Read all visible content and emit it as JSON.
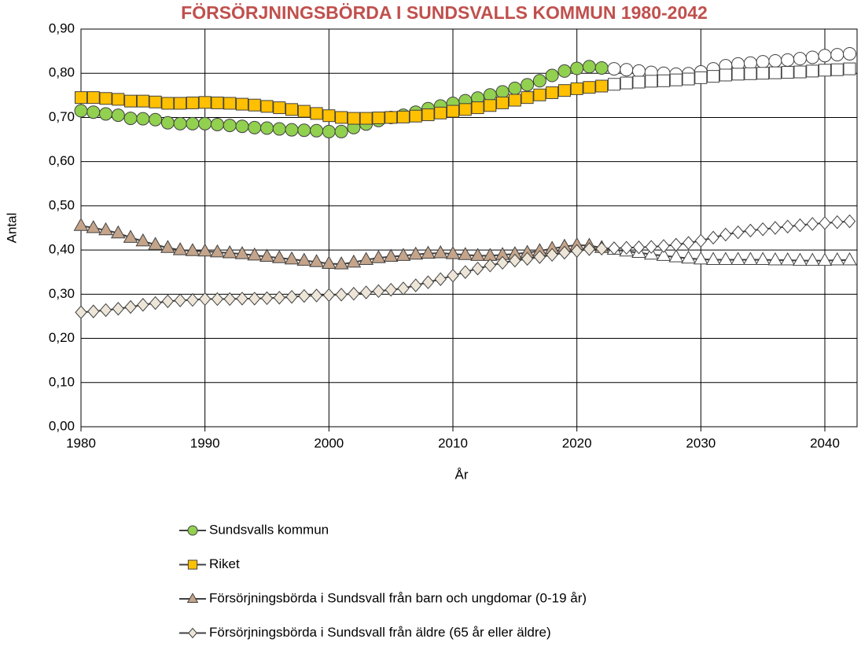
{
  "chart_data": {
    "type": "line",
    "title": "FÖRSÖRJNINGSBÖRDA I SUNDSVALLS KOMMUN 1980-2042",
    "xlabel": "År",
    "ylabel": "Antal",
    "x": [
      1980,
      1981,
      1982,
      1983,
      1984,
      1985,
      1986,
      1987,
      1988,
      1989,
      1990,
      1991,
      1992,
      1993,
      1994,
      1995,
      1996,
      1997,
      1998,
      1999,
      2000,
      2001,
      2002,
      2003,
      2004,
      2005,
      2006,
      2007,
      2008,
      2009,
      2010,
      2011,
      2012,
      2013,
      2014,
      2015,
      2016,
      2017,
      2018,
      2019,
      2020,
      2021,
      2022,
      2023,
      2024,
      2025,
      2026,
      2027,
      2028,
      2029,
      2030,
      2031,
      2032,
      2033,
      2034,
      2035,
      2036,
      2037,
      2038,
      2039,
      2040,
      2041,
      2042
    ],
    "forecast_from": 2023,
    "forecast_color": "#ffffff",
    "line_color": "#404040",
    "series": [
      {
        "name": "Sundsvalls kommun",
        "marker": "circle",
        "color": "#92d050",
        "values": [
          0.715,
          0.712,
          0.708,
          0.705,
          0.698,
          0.697,
          0.695,
          0.688,
          0.686,
          0.686,
          0.686,
          0.684,
          0.682,
          0.68,
          0.677,
          0.676,
          0.674,
          0.672,
          0.671,
          0.67,
          0.668,
          0.668,
          0.677,
          0.685,
          0.693,
          0.7,
          0.705,
          0.712,
          0.72,
          0.726,
          0.732,
          0.738,
          0.744,
          0.751,
          0.758,
          0.766,
          0.774,
          0.783,
          0.795,
          0.805,
          0.811,
          0.815,
          0.812,
          0.81,
          0.808,
          0.805,
          0.802,
          0.8,
          0.798,
          0.799,
          0.803,
          0.81,
          0.817,
          0.821,
          0.823,
          0.826,
          0.828,
          0.83,
          0.833,
          0.836,
          0.84,
          0.842,
          0.844
        ]
      },
      {
        "name": "Riket",
        "marker": "square",
        "color": "#ffc000",
        "values": [
          0.745,
          0.745,
          0.743,
          0.741,
          0.737,
          0.737,
          0.735,
          0.732,
          0.732,
          0.733,
          0.734,
          0.733,
          0.732,
          0.73,
          0.728,
          0.725,
          0.722,
          0.718,
          0.714,
          0.709,
          0.704,
          0.7,
          0.698,
          0.698,
          0.699,
          0.7,
          0.701,
          0.703,
          0.706,
          0.71,
          0.714,
          0.718,
          0.722,
          0.727,
          0.733,
          0.739,
          0.745,
          0.751,
          0.756,
          0.761,
          0.765,
          0.768,
          0.771,
          0.775,
          0.778,
          0.78,
          0.782,
          0.783,
          0.785,
          0.787,
          0.79,
          0.793,
          0.796,
          0.798,
          0.799,
          0.8,
          0.801,
          0.802,
          0.803,
          0.805,
          0.807,
          0.808,
          0.81
        ]
      },
      {
        "name": "Försörjningsbörda i Sundsvall från barn och ungdomar (0-19 år)",
        "marker": "triangle",
        "color": "#c4a48a",
        "values": [
          0.455,
          0.45,
          0.445,
          0.438,
          0.428,
          0.42,
          0.412,
          0.405,
          0.4,
          0.398,
          0.397,
          0.395,
          0.393,
          0.391,
          0.388,
          0.385,
          0.382,
          0.379,
          0.376,
          0.373,
          0.369,
          0.368,
          0.372,
          0.378,
          0.382,
          0.385,
          0.387,
          0.39,
          0.392,
          0.393,
          0.391,
          0.389,
          0.387,
          0.387,
          0.389,
          0.391,
          0.394,
          0.398,
          0.403,
          0.408,
          0.411,
          0.41,
          0.405,
          0.401,
          0.397,
          0.394,
          0.39,
          0.387,
          0.384,
          0.381,
          0.379,
          0.378,
          0.378,
          0.378,
          0.378,
          0.378,
          0.377,
          0.377,
          0.376,
          0.376,
          0.376,
          0.377,
          0.377
        ]
      },
      {
        "name": "Försörjningsbörda i Sundsvall från äldre (65 år eller äldre)",
        "marker": "diamond",
        "color": "#ede6d8",
        "values": [
          0.259,
          0.261,
          0.264,
          0.267,
          0.271,
          0.276,
          0.28,
          0.284,
          0.286,
          0.287,
          0.289,
          0.289,
          0.289,
          0.29,
          0.29,
          0.291,
          0.292,
          0.294,
          0.296,
          0.297,
          0.298,
          0.299,
          0.301,
          0.304,
          0.307,
          0.31,
          0.313,
          0.32,
          0.327,
          0.334,
          0.342,
          0.35,
          0.358,
          0.365,
          0.371,
          0.376,
          0.38,
          0.384,
          0.389,
          0.394,
          0.398,
          0.402,
          0.403,
          0.404,
          0.405,
          0.406,
          0.407,
          0.409,
          0.412,
          0.416,
          0.421,
          0.428,
          0.435,
          0.44,
          0.444,
          0.447,
          0.45,
          0.453,
          0.456,
          0.459,
          0.461,
          0.463,
          0.465
        ]
      }
    ],
    "xlim": [
      1980,
      2042.6
    ],
    "xticks": [
      1980,
      1990,
      2000,
      2010,
      2020,
      2030,
      2040
    ],
    "ylim": [
      0,
      0.9
    ],
    "yticks": [
      {
        "value": 0,
        "label": "0,00"
      },
      {
        "value": 0.1,
        "label": "0,10"
      },
      {
        "value": 0.2,
        "label": "0,20"
      },
      {
        "value": 0.3,
        "label": "0,30"
      },
      {
        "value": 0.4,
        "label": "0,40"
      },
      {
        "value": 0.5,
        "label": "0,50"
      },
      {
        "value": 0.6,
        "label": "0,60"
      },
      {
        "value": 0.7,
        "label": "0,70"
      },
      {
        "value": 0.8,
        "label": "0,80"
      },
      {
        "value": 0.9,
        "label": "0,90"
      }
    ],
    "grid": true,
    "title_color": "#c0504d"
  }
}
